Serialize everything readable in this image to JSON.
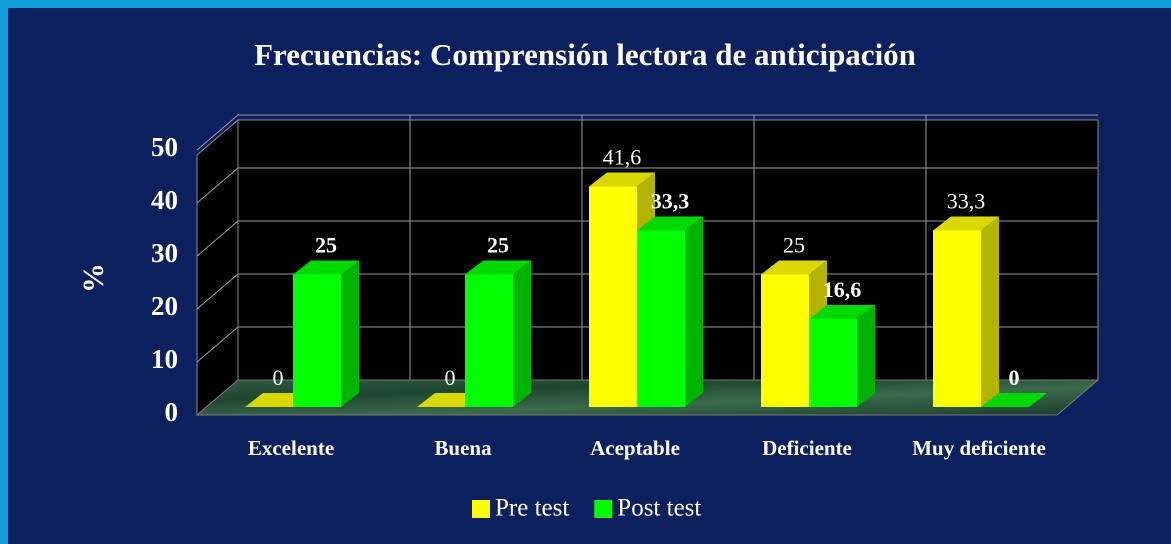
{
  "chart_data": {
    "type": "bar3d",
    "title": "Frecuencias: Comprensión lectora de anticipación",
    "ylabel": "%",
    "categories": [
      "Excelente",
      "Buena",
      "Aceptable",
      "Deficiente",
      "Muy deficiente"
    ],
    "series": [
      {
        "name": "Pre test",
        "color": "#ffff00",
        "values": [
          0,
          0,
          41.6,
          25,
          33.3
        ],
        "value_labels": [
          "0",
          "0",
          "41,6",
          "25",
          "33,3"
        ]
      },
      {
        "name": "Post test",
        "color": "#00ff00",
        "values": [
          25,
          25,
          33.3,
          16.6,
          0
        ],
        "value_labels": [
          "25",
          "25",
          "33,3",
          "16,6",
          "0"
        ]
      }
    ],
    "ylim": [
      0,
      50
    ],
    "yticks": [
      0,
      10,
      20,
      30,
      40,
      50
    ],
    "grid": true,
    "legend": "bottom"
  }
}
